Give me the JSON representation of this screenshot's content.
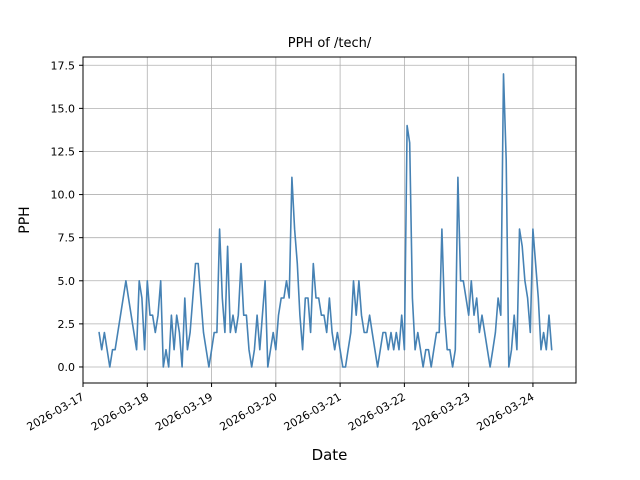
{
  "figure": {
    "background": "#ffffff"
  },
  "chart_data": {
    "type": "line",
    "title": "PPH of /tech/",
    "xlabel": "Date",
    "ylabel": "PPH",
    "legend": "none",
    "grid": "on",
    "grid_color": "#b0b0b0",
    "spine_color": "#000000",
    "line_color": "#4682b4",
    "x_tick_labels": [
      "2026-03-17",
      "2026-03-18",
      "2026-03-19",
      "2026-03-20",
      "2026-03-21",
      "2026-03-22",
      "2026-03-23",
      "2026-03-24"
    ],
    "x_tick_days": [
      0,
      1,
      2,
      3,
      4,
      5,
      6,
      7
    ],
    "y_tick_labels": [
      "0.0",
      "2.5",
      "5.0",
      "7.5",
      "10.0",
      "12.5",
      "15.0",
      "17.5"
    ],
    "y_tick_values": [
      0,
      2.5,
      5,
      7.5,
      10,
      12.5,
      15,
      17.5
    ],
    "xlim_days": [
      0,
      7.67
    ],
    "ylim": [
      -0.93,
      17.98
    ],
    "series": {
      "name": "PPH",
      "x_start_days": 0.25,
      "x_step_days": 0.0416667,
      "values": [
        2,
        1,
        2,
        1,
        0,
        1,
        1,
        2,
        3,
        4,
        5,
        4,
        3,
        2,
        1,
        5,
        4,
        1,
        5,
        3,
        3,
        2,
        3,
        5,
        0,
        1,
        0,
        3,
        1,
        3,
        2,
        0,
        4,
        1,
        2,
        4,
        6,
        6,
        4,
        2,
        1,
        0,
        1,
        2,
        2,
        8,
        4,
        2,
        7,
        2,
        3,
        2,
        3,
        6,
        3,
        3,
        1,
        0,
        1,
        3,
        1,
        3,
        5,
        0,
        1,
        2,
        1,
        3,
        4,
        4,
        5,
        4,
        11,
        8,
        6,
        3,
        1,
        4,
        4,
        2,
        6,
        4,
        4,
        3,
        3,
        2,
        4,
        2,
        1,
        2,
        1,
        0,
        0,
        1,
        2,
        5,
        3,
        5,
        3,
        2,
        2,
        3,
        2,
        1,
        0,
        1,
        2,
        2,
        1,
        2,
        1,
        2,
        1,
        3,
        1,
        14,
        13,
        4,
        1,
        2,
        1,
        0,
        1,
        1,
        0,
        1,
        2,
        2,
        8,
        3,
        1,
        1,
        0,
        1,
        11,
        5,
        5,
        4,
        3,
        5,
        3,
        4,
        2,
        3,
        2,
        1,
        0,
        1,
        2,
        4,
        3,
        17,
        12,
        0,
        1,
        3,
        1,
        8,
        7,
        5,
        4,
        2,
        8,
        6,
        4,
        1,
        2,
        1,
        3,
        1
      ]
    }
  }
}
